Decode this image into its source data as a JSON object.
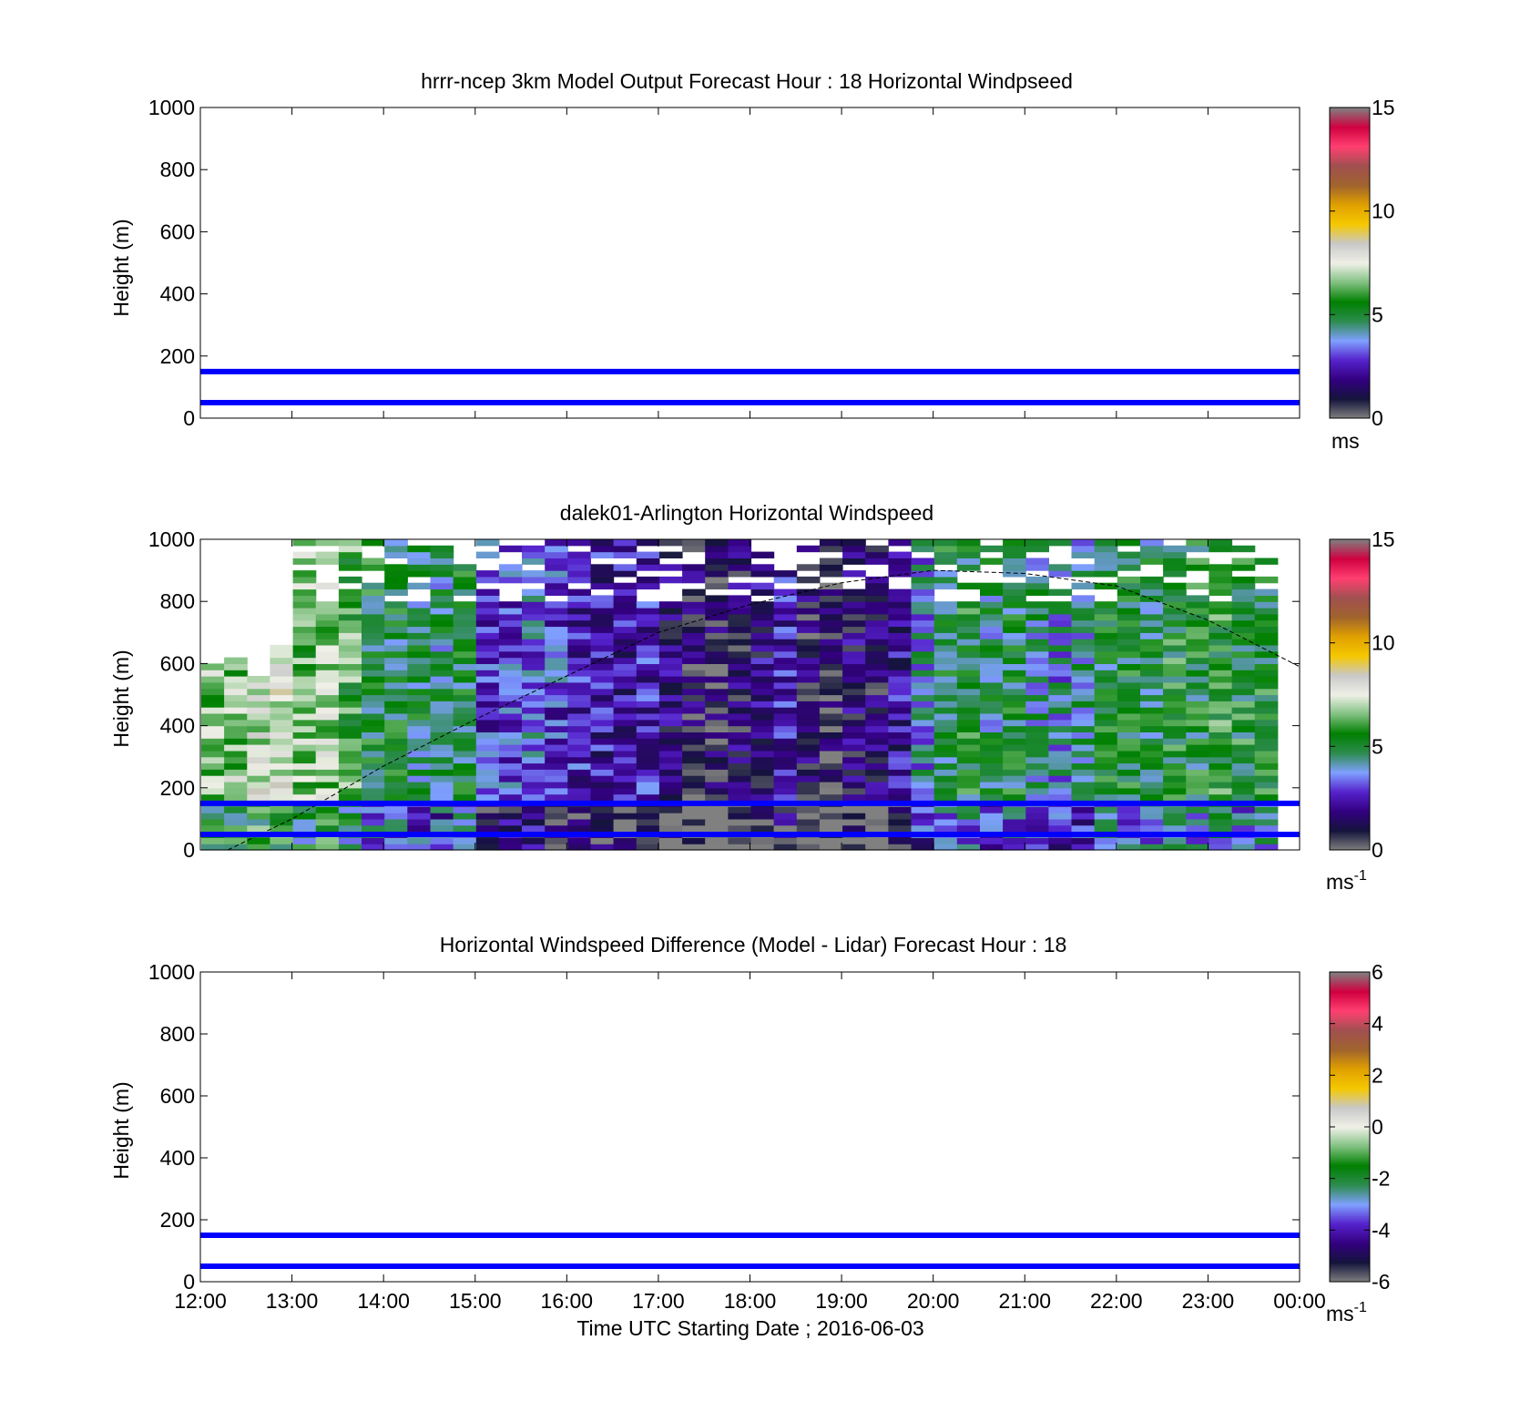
{
  "figure": {
    "xlabel": "Time UTC  Starting Date ; 2016-06-03",
    "x_ticks": [
      "12:00",
      "13:00",
      "14:00",
      "15:00",
      "16:00",
      "17:00",
      "18:00",
      "19:00",
      "20:00",
      "21:00",
      "22:00",
      "23:00",
      "00:00"
    ]
  },
  "chart_data": [
    {
      "type": "heatmap",
      "title": "hrrr-ncep 3km Model Output   Forecast Hour : 18 Horizontal Windpseed",
      "ylabel": "Height (m)",
      "ylim": [
        0,
        1000
      ],
      "y_ticks": [
        "0",
        "200",
        "400",
        "600",
        "800",
        "1000"
      ],
      "x_range_hours": [
        12,
        24
      ],
      "colorbar": {
        "ticks": [
          "0",
          "5",
          "10",
          "15"
        ],
        "range": [
          0,
          15
        ],
        "unit": "ms",
        "unit_sup": ""
      },
      "reference_lines_m": [
        50,
        150
      ],
      "reference_line_color": "#0000ff",
      "cells": "none"
    },
    {
      "type": "heatmap",
      "title": "dalek01-Arlington  Horizontal Windspeed",
      "ylabel": "Height (m)",
      "ylim": [
        0,
        1000
      ],
      "y_ticks": [
        "0",
        "200",
        "400",
        "600",
        "800",
        "1000"
      ],
      "x_range_hours": [
        12,
        24
      ],
      "colorbar": {
        "ticks": [
          "0",
          "5",
          "10",
          "15"
        ],
        "range": [
          0,
          15
        ],
        "unit": "ms",
        "unit_sup": "-1"
      },
      "reference_lines_m": [
        50,
        150
      ],
      "reference_line_color": "#0000ff",
      "cells": "lidar",
      "lidar_columns": {
        "start_hour": 12.0,
        "column_width_hours": 0.25,
        "top_m": [
          590,
          620,
          560,
          650,
          1000,
          1000,
          1000,
          1000,
          1000,
          1000,
          1000,
          1000,
          1000,
          1000,
          1000,
          1000,
          1000,
          1000,
          1000,
          1000,
          1000,
          1000,
          1000,
          1000,
          1000,
          1000,
          1000,
          1000,
          1000,
          1000,
          1000,
          1000,
          1000,
          1000,
          1000,
          1000,
          1000,
          1000,
          1000,
          1000,
          1000,
          1000,
          1000,
          1000,
          1000,
          1000,
          1000
        ],
        "mean_speed_ms": [
          6.5,
          6.8,
          7.2,
          7.4,
          6.5,
          6.8,
          6.0,
          5.2,
          5.0,
          4.8,
          4.6,
          5.0,
          3.0,
          3.2,
          3.4,
          3.0,
          2.6,
          2.4,
          2.2,
          2.6,
          1.8,
          1.2,
          1.0,
          1.4,
          1.8,
          2.6,
          1.2,
          1.0,
          1.6,
          1.4,
          2.2,
          4.0,
          5.0,
          5.2,
          4.6,
          5.0,
          4.4,
          4.0,
          4.2,
          5.0,
          5.2,
          4.8,
          5.4,
          5.2,
          5.6,
          5.4,
          5.2
        ]
      },
      "boundary_layer_curve": {
        "hours": [
          12.3,
          13.0,
          14.0,
          15.0,
          16.0,
          17.0,
          18.0,
          19.0,
          20.0,
          21.0,
          22.0,
          23.0,
          24.0
        ],
        "height_m": [
          0,
          100,
          270,
          420,
          560,
          700,
          790,
          860,
          900,
          890,
          850,
          740,
          590
        ]
      }
    },
    {
      "type": "heatmap",
      "title": "Horizontal Windspeed Difference (Model - Lidar) Forecast Hour : 18",
      "ylabel": "Height (m)",
      "ylim": [
        0,
        1000
      ],
      "y_ticks": [
        "0",
        "200",
        "400",
        "600",
        "800",
        "1000"
      ],
      "x_range_hours": [
        12,
        24
      ],
      "colorbar": {
        "ticks": [
          "-6",
          "-4",
          "-2",
          "0",
          "2",
          "4",
          "6"
        ],
        "range": [
          -6,
          6
        ],
        "unit": "ms",
        "unit_sup": "-1"
      },
      "reference_lines_m": [
        50,
        150
      ],
      "reference_line_color": "#0000ff",
      "cells": "none"
    }
  ],
  "colormap_stops": [
    "#808080",
    "#14143c",
    "#330080",
    "#5522cc",
    "#7fa0ff",
    "#2d8c4f",
    "#008000",
    "#80c080",
    "#f0f0e8",
    "#c8c8c8",
    "#f5c800",
    "#e0a000",
    "#a0642d",
    "#a05050",
    "#ff4070",
    "#d00040",
    "#808080"
  ]
}
